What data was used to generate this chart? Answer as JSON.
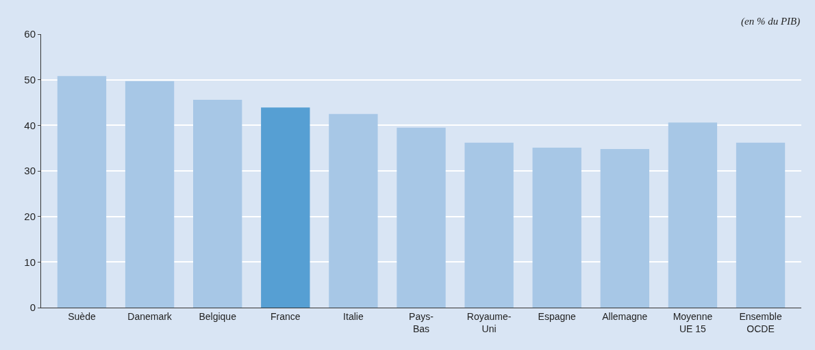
{
  "chart_data": {
    "type": "bar",
    "categories": [
      "Suède",
      "Danemark",
      "Belgique",
      "France",
      "Italie",
      "Pays-\nBas",
      "Royaume-\nUni",
      "Espagne",
      "Allemagne",
      "Moyenne\nUE 15",
      "Ensemble\nOCDE"
    ],
    "values": [
      50.8,
      49.7,
      45.6,
      43.9,
      42.5,
      39.5,
      36.2,
      35.1,
      34.8,
      40.6,
      36.2
    ],
    "colors": [
      "#a7c7e6",
      "#a7c7e6",
      "#a7c7e6",
      "#569fd3",
      "#a7c7e6",
      "#a7c7e6",
      "#a7c7e6",
      "#a7c7e6",
      "#a7c7e6",
      "#a7c7e6",
      "#a7c7e6"
    ],
    "ylim": [
      0,
      60
    ],
    "yticks": [
      0,
      10,
      20,
      30,
      40,
      50,
      60
    ],
    "grid": "y",
    "annotations": [
      "(en % du PIB)"
    ]
  }
}
